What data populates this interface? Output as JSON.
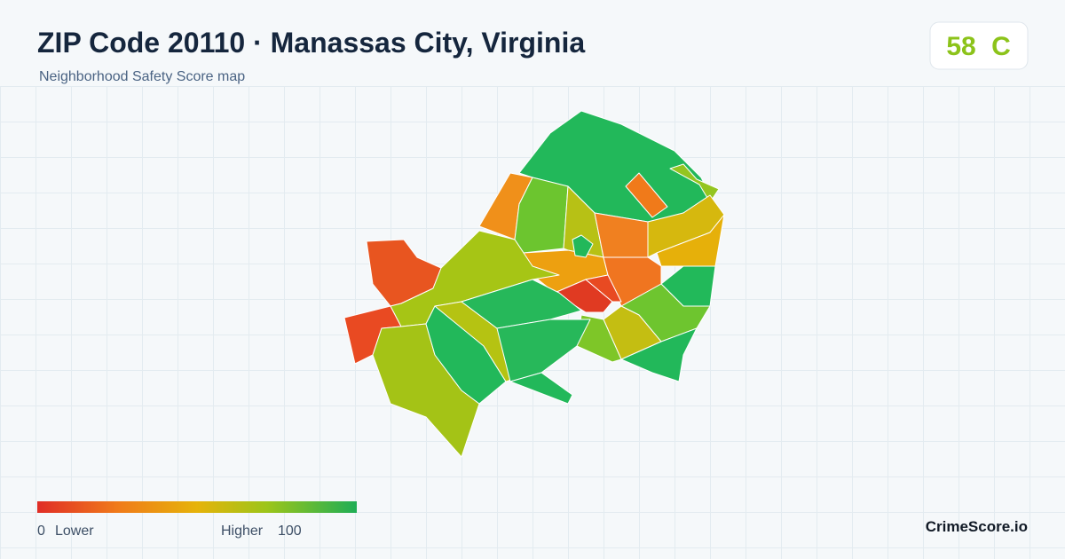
{
  "header": {
    "title": "ZIP Code 20110 · Manassas City, Virginia",
    "subtitle": "Neighborhood Safety Score map"
  },
  "score": {
    "value": 58,
    "grade": "C"
  },
  "legend": {
    "min": 0,
    "min_label": "Lower",
    "max_label": "Higher",
    "max": 100
  },
  "footer": {
    "brand": "CrimeScore.io"
  }
}
